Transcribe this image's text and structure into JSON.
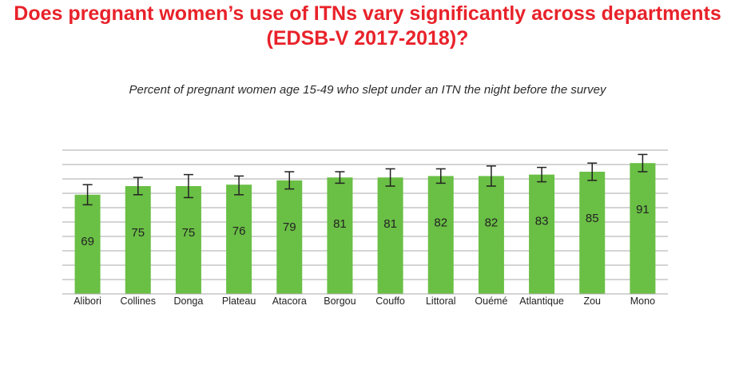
{
  "title_line1": "Does pregnant women’s use of ITNs vary significantly across departments",
  "title_line2": "(EDSB-V 2017-2018)?",
  "subtitle": "Percent of pregnant women age 15-49 who slept under an ITN the night before the survey",
  "colors": {
    "title": "#e8222a",
    "bar": "#6abf45",
    "error": "#222222",
    "grid": "#a9a9a9"
  },
  "chart_data": {
    "type": "bar",
    "title": "Does pregnant women’s use of ITNs vary significantly across departments (EDSB-V 2017-2018)?",
    "subtitle": "Percent of pregnant women age 15-49 who slept under an ITN the night before the survey",
    "categories": [
      "Alibori",
      "Collines",
      "Donga",
      "Plateau",
      "Atacora",
      "Borgou",
      "Couffo",
      "Littoral",
      "Ouémé",
      "Atlantique",
      "Zou",
      "Mono"
    ],
    "values": [
      69,
      75,
      75,
      76,
      79,
      81,
      81,
      82,
      82,
      83,
      85,
      91
    ],
    "error_low": [
      62,
      69,
      67,
      69,
      73,
      77,
      75,
      77,
      75,
      78,
      79,
      85
    ],
    "error_high": [
      76,
      81,
      83,
      82,
      85,
      85,
      87,
      87,
      89,
      88,
      91,
      97
    ],
    "ylim": [
      0,
      100
    ],
    "grid": true,
    "xlabel": "",
    "ylabel": ""
  }
}
